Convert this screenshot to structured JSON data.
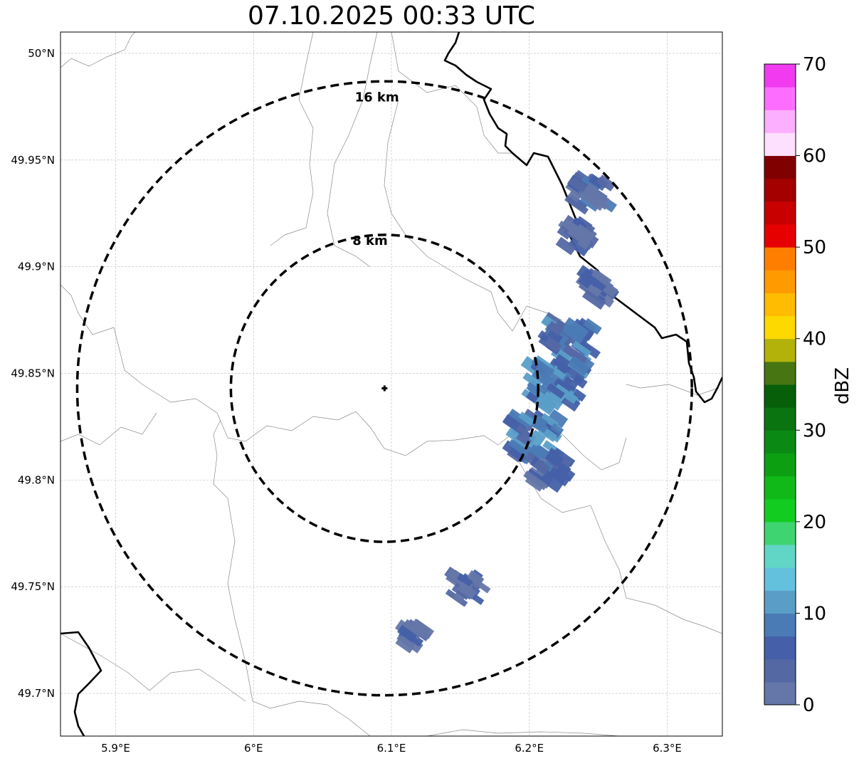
{
  "title": "07.10.2025 00:33 UTC",
  "map": {
    "lon_range": [
      5.86,
      6.34
    ],
    "lat_range": [
      49.68,
      50.01
    ],
    "x_ticks": [
      {
        "value": 5.9,
        "label": "5.9°E"
      },
      {
        "value": 6.0,
        "label": "6°E"
      },
      {
        "value": 6.1,
        "label": "6.1°E"
      },
      {
        "value": 6.2,
        "label": "6.2°E"
      },
      {
        "value": 6.3,
        "label": "6.3°E"
      }
    ],
    "y_ticks": [
      {
        "value": 50.0,
        "label": "50°N"
      },
      {
        "value": 49.95,
        "label": "49.95°N"
      },
      {
        "value": 49.9,
        "label": "49.9°N"
      },
      {
        "value": 49.85,
        "label": "49.85°N"
      },
      {
        "value": 49.8,
        "label": "49.8°N"
      },
      {
        "value": 49.75,
        "label": "49.75°N"
      },
      {
        "value": 49.7,
        "label": "49.7°N"
      }
    ],
    "radar_site": {
      "lon": 6.095,
      "lat": 49.843
    },
    "range_rings": [
      {
        "label": "8 km"
      },
      {
        "label": "16 km"
      }
    ],
    "echoes": [
      {
        "lon": 6.245,
        "lat": 49.935,
        "level": 3
      },
      {
        "lon": 6.235,
        "lat": 49.915,
        "level": 2
      },
      {
        "lon": 6.25,
        "lat": 49.89,
        "level": 2
      },
      {
        "lon": 6.23,
        "lat": 49.865,
        "level": 5
      },
      {
        "lon": 6.22,
        "lat": 49.845,
        "level": 6
      },
      {
        "lon": 6.205,
        "lat": 49.82,
        "level": 5
      },
      {
        "lon": 6.215,
        "lat": 49.805,
        "level": 3
      },
      {
        "lon": 6.155,
        "lat": 49.75,
        "level": 2
      },
      {
        "lon": 6.115,
        "lat": 49.727,
        "level": 1
      }
    ]
  },
  "colorbar": {
    "label": "dBZ",
    "min": 0,
    "max": 70,
    "ticks": [
      {
        "value": 0,
        "label": "0"
      },
      {
        "value": 10,
        "label": "10"
      },
      {
        "value": 20,
        "label": "20"
      },
      {
        "value": 30,
        "label": "30"
      },
      {
        "value": 40,
        "label": "40"
      },
      {
        "value": 50,
        "label": "50"
      },
      {
        "value": 60,
        "label": "60"
      },
      {
        "value": 70,
        "label": "70"
      }
    ],
    "colors": [
      "#6577a9",
      "#5468a4",
      "#4560a8",
      "#4b7bb5",
      "#5a9ec8",
      "#64c1de",
      "#62d6c6",
      "#3ed470",
      "#12cd20",
      "#10b918",
      "#0c9f12",
      "#0a8a14",
      "#0a7410",
      "#075f0a",
      "#477512",
      "#b2b20a",
      "#fed900",
      "#ffbc00",
      "#ff9a00",
      "#ff7e00",
      "#e70000",
      "#c80000",
      "#a40000",
      "#800000",
      "#fde0fe",
      "#fdafff",
      "#fd6dff",
      "#f23bf1"
    ]
  }
}
